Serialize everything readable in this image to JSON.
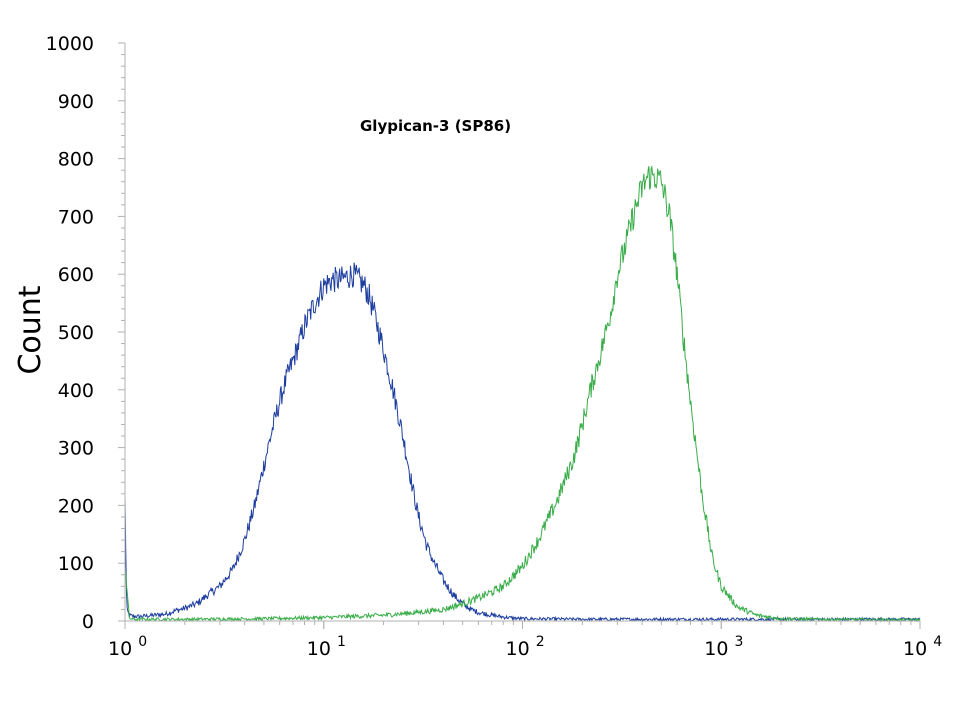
{
  "chart_data": {
    "type": "line",
    "title": "",
    "annotation": "Glypican-3 (SP86)",
    "xlabel": "",
    "ylabel": "Count",
    "x_scale": "log",
    "xlim": [
      1,
      10000
    ],
    "ylim": [
      0,
      1000
    ],
    "grid": false,
    "y_ticks": [
      "0",
      "100",
      "200",
      "300",
      "400",
      "500",
      "600",
      "700",
      "800",
      "900",
      "1000"
    ],
    "x_ticks": [
      {
        "base": "10",
        "exp": "0",
        "value": 1
      },
      {
        "base": "10",
        "exp": "1",
        "value": 10
      },
      {
        "base": "10",
        "exp": "2",
        "value": 100
      },
      {
        "base": "10",
        "exp": "3",
        "value": 1000
      },
      {
        "base": "10",
        "exp": "4",
        "value": 10000
      }
    ],
    "series": [
      {
        "color": "#1f3fa0",
        "x": [
          1,
          1.02,
          1.05,
          1.1,
          1.2,
          1.4,
          1.6,
          1.8,
          2,
          2.3,
          2.6,
          3,
          3.5,
          4,
          4.5,
          5,
          5.5,
          6,
          6.5,
          7,
          7.5,
          8,
          9,
          10,
          11,
          12,
          13,
          14,
          15,
          16,
          17,
          18,
          19,
          20,
          22,
          24,
          26,
          28,
          30,
          33,
          36,
          40,
          45,
          50,
          55,
          60,
          70,
          80,
          90,
          100,
          200,
          500,
          1000,
          3000,
          10000
        ],
        "y": [
          210,
          20,
          10,
          8,
          8,
          10,
          12,
          18,
          22,
          30,
          45,
          60,
          90,
          140,
          200,
          270,
          330,
          380,
          420,
          450,
          480,
          510,
          550,
          580,
          590,
          590,
          595,
          600,
          590,
          580,
          560,
          530,
          500,
          470,
          410,
          350,
          290,
          230,
          180,
          130,
          100,
          70,
          45,
          30,
          20,
          15,
          10,
          7,
          5,
          4,
          3,
          3,
          3,
          3,
          3
        ]
      },
      {
        "color": "#3aad4a",
        "x": [
          1,
          1.05,
          1.1,
          2,
          5,
          10,
          20,
          30,
          40,
          50,
          60,
          70,
          80,
          100,
          120,
          150,
          180,
          200,
          220,
          250,
          280,
          300,
          330,
          360,
          400,
          430,
          460,
          500,
          550,
          600,
          650,
          700,
          800,
          900,
          1000,
          1200,
          1500,
          2000,
          3000,
          10000
        ],
        "y": [
          100,
          5,
          3,
          3,
          4,
          6,
          10,
          15,
          20,
          30,
          40,
          50,
          60,
          95,
          140,
          210,
          280,
          340,
          400,
          470,
          540,
          600,
          650,
          700,
          750,
          770,
          770,
          760,
          700,
          600,
          480,
          380,
          220,
          110,
          60,
          25,
          10,
          4,
          3,
          2
        ]
      }
    ]
  }
}
